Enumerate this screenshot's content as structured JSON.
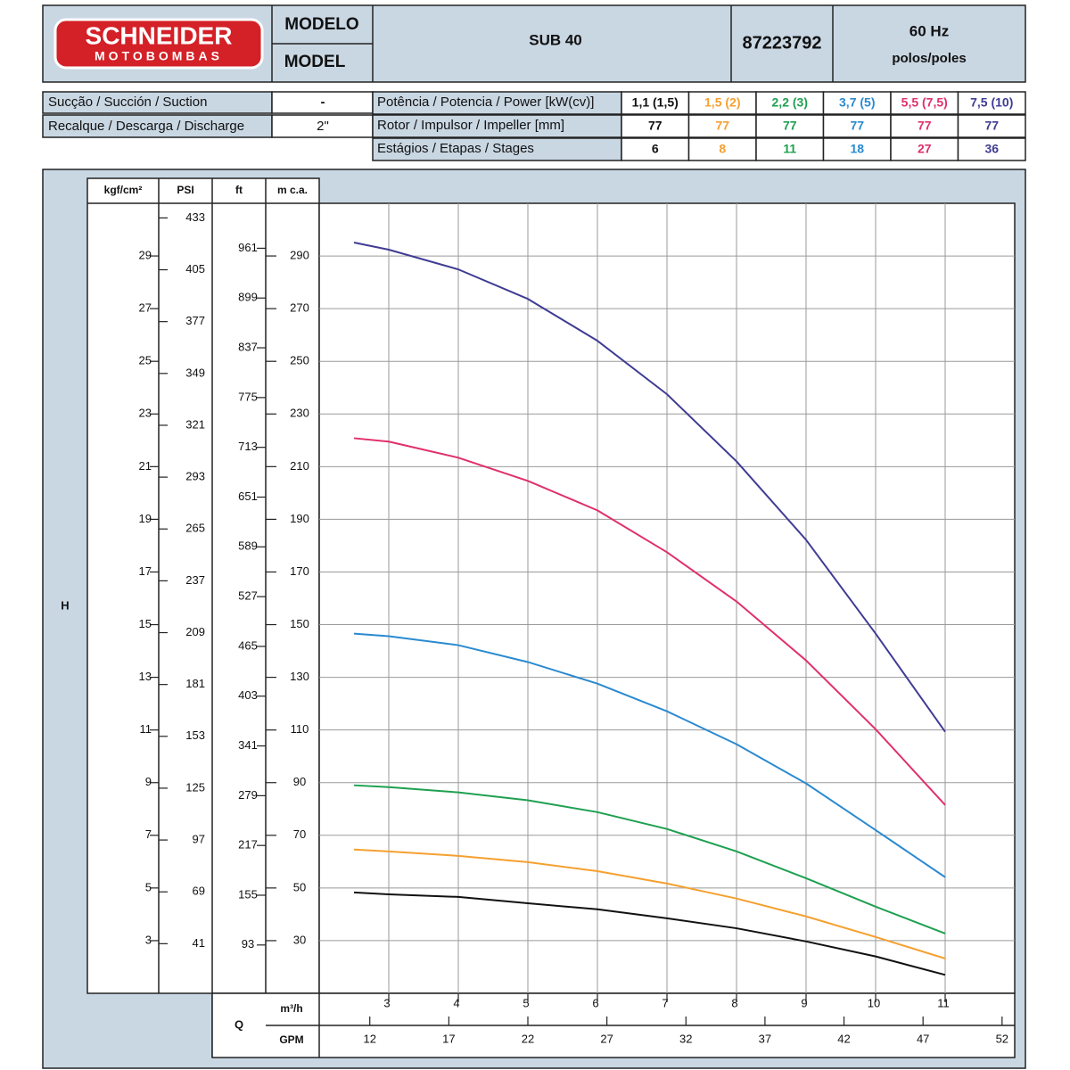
{
  "header": {
    "brand": "SCHNEIDER",
    "brand_sub": "MOTOBOMBAS",
    "model_label_pt": "MODELO",
    "model_label_en": "MODEL",
    "model": "SUB 40",
    "code": "87223792",
    "frequency": "60 Hz",
    "poles": "polos/poles"
  },
  "specs": {
    "rows": [
      [
        "Sucção / Succión / Suction",
        "-"
      ],
      [
        "Recalque / Descarga / Discharge",
        "2\""
      ]
    ],
    "power_label": "Potência / Potencia / Power [kW(cv)]",
    "impeller_label": "Rotor / Impulsor / Impeller [mm]",
    "stages_label": "Estágios / Etapas / Stages"
  },
  "chart_data": {
    "type": "line",
    "y_axis_label": "H",
    "x_axis_label": "Q",
    "ylabel": "m c.a.",
    "ylim": [
      10,
      310
    ],
    "yticks": [
      30,
      50,
      70,
      90,
      110,
      130,
      150,
      170,
      190,
      210,
      230,
      250,
      270,
      290
    ],
    "xlabel": "m³/h",
    "xlim": [
      2,
      12
    ],
    "xticks": [
      3,
      4,
      5,
      6,
      7,
      8,
      9,
      10,
      11
    ],
    "x2": {
      "label": "GPM",
      "lim": [
        8.8,
        52.8
      ],
      "ticks": [
        12,
        17,
        22,
        27,
        32,
        37,
        42,
        47,
        52
      ]
    },
    "extra_y_axes": [
      {
        "label": "kgf/cm²",
        "lim": [
          1,
          31
        ],
        "ticks": [
          3,
          5,
          7,
          9,
          11,
          13,
          15,
          17,
          19,
          21,
          23,
          25,
          27,
          29
        ]
      },
      {
        "label": "PSI",
        "lim": [
          14.2,
          440.9
        ],
        "ticks": [
          41,
          69,
          97,
          125,
          153,
          181,
          209,
          237,
          265,
          293,
          321,
          349,
          377,
          405,
          433
        ]
      },
      {
        "label": "ft",
        "lim": [
          32.8,
          1017
        ],
        "ticks": [
          93,
          155,
          217,
          279,
          341,
          403,
          465,
          527,
          589,
          651,
          713,
          775,
          837,
          899,
          961
        ]
      }
    ],
    "grid": true,
    "x": [
      2.5,
      3,
      4,
      5,
      6,
      7,
      8,
      9,
      10,
      11
    ],
    "series": [
      {
        "name": "1,1 (1,5)",
        "color": "#111111",
        "impeller": "77",
        "stages": "6",
        "values": [
          48.3,
          47.6,
          46.6,
          44.2,
          41.9,
          38.5,
          34.7,
          29.7,
          24,
          17
        ]
      },
      {
        "name": "1,5 (2)",
        "color": "#f5a030",
        "impeller": "77",
        "stages": "8",
        "values": [
          64.6,
          63.9,
          62.2,
          59.8,
          56.4,
          51.7,
          46,
          39.2,
          31.4,
          23.2
        ]
      },
      {
        "name": "2,2 (3)",
        "color": "#1ea050",
        "impeller": "77",
        "stages": "11",
        "values": [
          89,
          88.3,
          86.3,
          83.3,
          78.8,
          72.4,
          63.9,
          53.7,
          42.9,
          32.7
        ]
      },
      {
        "name": "3,7 (5)",
        "color": "#2a8ad0",
        "impeller": "77",
        "stages": "18",
        "values": [
          146.6,
          145.6,
          142.2,
          135.8,
          127.6,
          117.1,
          104.6,
          89.7,
          72,
          54.1
        ]
      },
      {
        "name": "5,5 (7,5)",
        "color": "#e0306a",
        "impeller": "77",
        "stages": "27",
        "values": [
          220.8,
          219.5,
          213.4,
          204.6,
          193.4,
          177.5,
          158.8,
          136.4,
          110.3,
          81.5
        ]
      },
      {
        "name": "7,5 (10)",
        "color": "#403c94",
        "impeller": "77",
        "stages": "36",
        "values": [
          295.1,
          292.4,
          284.9,
          273.7,
          257.8,
          237.5,
          212,
          182.2,
          146.6,
          109.3
        ]
      }
    ]
  }
}
